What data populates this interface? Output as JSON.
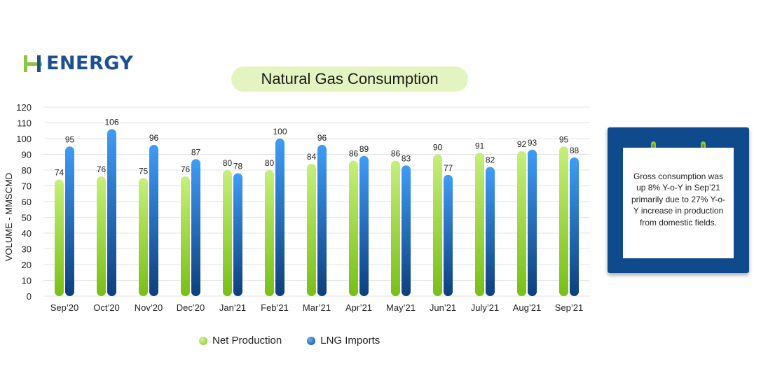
{
  "brand": {
    "logo_text": "ENERGY",
    "colors": {
      "blue": "#1e4f93",
      "green": "#8cc63f"
    }
  },
  "legend": {
    "items": [
      {
        "label": "Net Production",
        "color": "#8cc63f"
      },
      {
        "label": "LNG Imports",
        "color": "#1f77d0"
      }
    ]
  },
  "note": {
    "text": "Gross consumption was up 8% Y-o-Y in Sep’21 primarily due to 27% Y-o-Y increase in production from domestic fields."
  },
  "chart_data": {
    "type": "bar",
    "title": "Natural Gas Consumption",
    "xlabel": "",
    "ylabel": "VOLUME - MMSCMD",
    "ylim": [
      0,
      120
    ],
    "yticks": [
      0,
      10,
      20,
      30,
      40,
      50,
      60,
      70,
      80,
      90,
      100,
      110,
      120
    ],
    "grid": true,
    "legend_position": "bottom",
    "categories": [
      "Sep’20",
      "Oct’20",
      "Nov’20",
      "Dec’20",
      "Jan’21",
      "Feb’21",
      "Mar’21",
      "Apr’21",
      "May’21",
      "Jun’21",
      "July’21",
      "Aug’21",
      "Sep’21"
    ],
    "series": [
      {
        "name": "Net Production",
        "color": "#8cc63f",
        "values": [
          74,
          76,
          75,
          76,
          80,
          80,
          84,
          86,
          86,
          90,
          91,
          92,
          95
        ],
        "labels": [
          "74",
          "76",
          "75",
          "76",
          "80",
          "80",
          "84",
          "86",
          "86",
          "90",
          "91",
          "92",
          "95"
        ]
      },
      {
        "name": "LNG Imports",
        "color": "#1f77d0",
        "values": [
          95,
          106,
          96,
          87,
          78,
          100,
          96,
          89,
          83,
          77,
          82,
          93,
          88
        ],
        "labels": [
          "95",
          "106",
          "96",
          "87",
          "78",
          "100",
          "96",
          "89",
          "83",
          "77",
          "82",
          "93",
          "88"
        ]
      }
    ]
  }
}
